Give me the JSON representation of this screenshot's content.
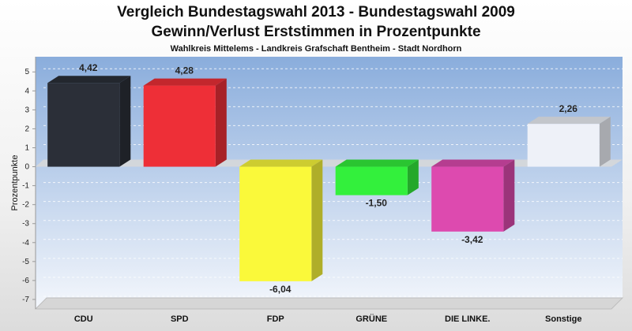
{
  "title_lines": [
    "Vergleich Bundestagswahl 2013 - Bundestagswahl 2009",
    "Gewinn/Verlust Erststimmen in Prozentpunkte"
  ],
  "subtitle": "Wahlkreis Mittelems - Landkreis Grafschaft Bentheim - Stadt Nordhorn",
  "chart_data": {
    "type": "bar",
    "title": "Vergleich Bundestagswahl 2013 - Bundestagswahl 2009 / Gewinn/Verlust Erststimmen in Prozentpunkte",
    "subtitle": "Wahlkreis Mittelems - Landkreis Grafschaft Bentheim - Stadt Nordhorn",
    "ylabel": "Prozentpunkte",
    "xlabel": "",
    "ylim": [
      -7.5,
      5.8
    ],
    "yticks": [
      "5",
      "4",
      "3",
      "2",
      "1",
      "0",
      "-1",
      "-2",
      "-3",
      "-4",
      "-5",
      "-6",
      "-7"
    ],
    "grid": true,
    "categories": [
      "CDU",
      "SPD",
      "FDP",
      "GRÜNE",
      "DIE LINKE.",
      "Sonstige"
    ],
    "values": [
      4.42,
      4.28,
      -6.04,
      -1.5,
      -3.42,
      2.26
    ],
    "value_labels": [
      "4,42",
      "4,28",
      "-6,04",
      "-1,50",
      "-3,42",
      "2,26"
    ],
    "colors": [
      "#2b2f38",
      "#ee2f37",
      "#faf93a",
      "#33f03c",
      "#dd4aaf",
      "#eef1f8"
    ],
    "background_color": "#8fb0dd"
  }
}
